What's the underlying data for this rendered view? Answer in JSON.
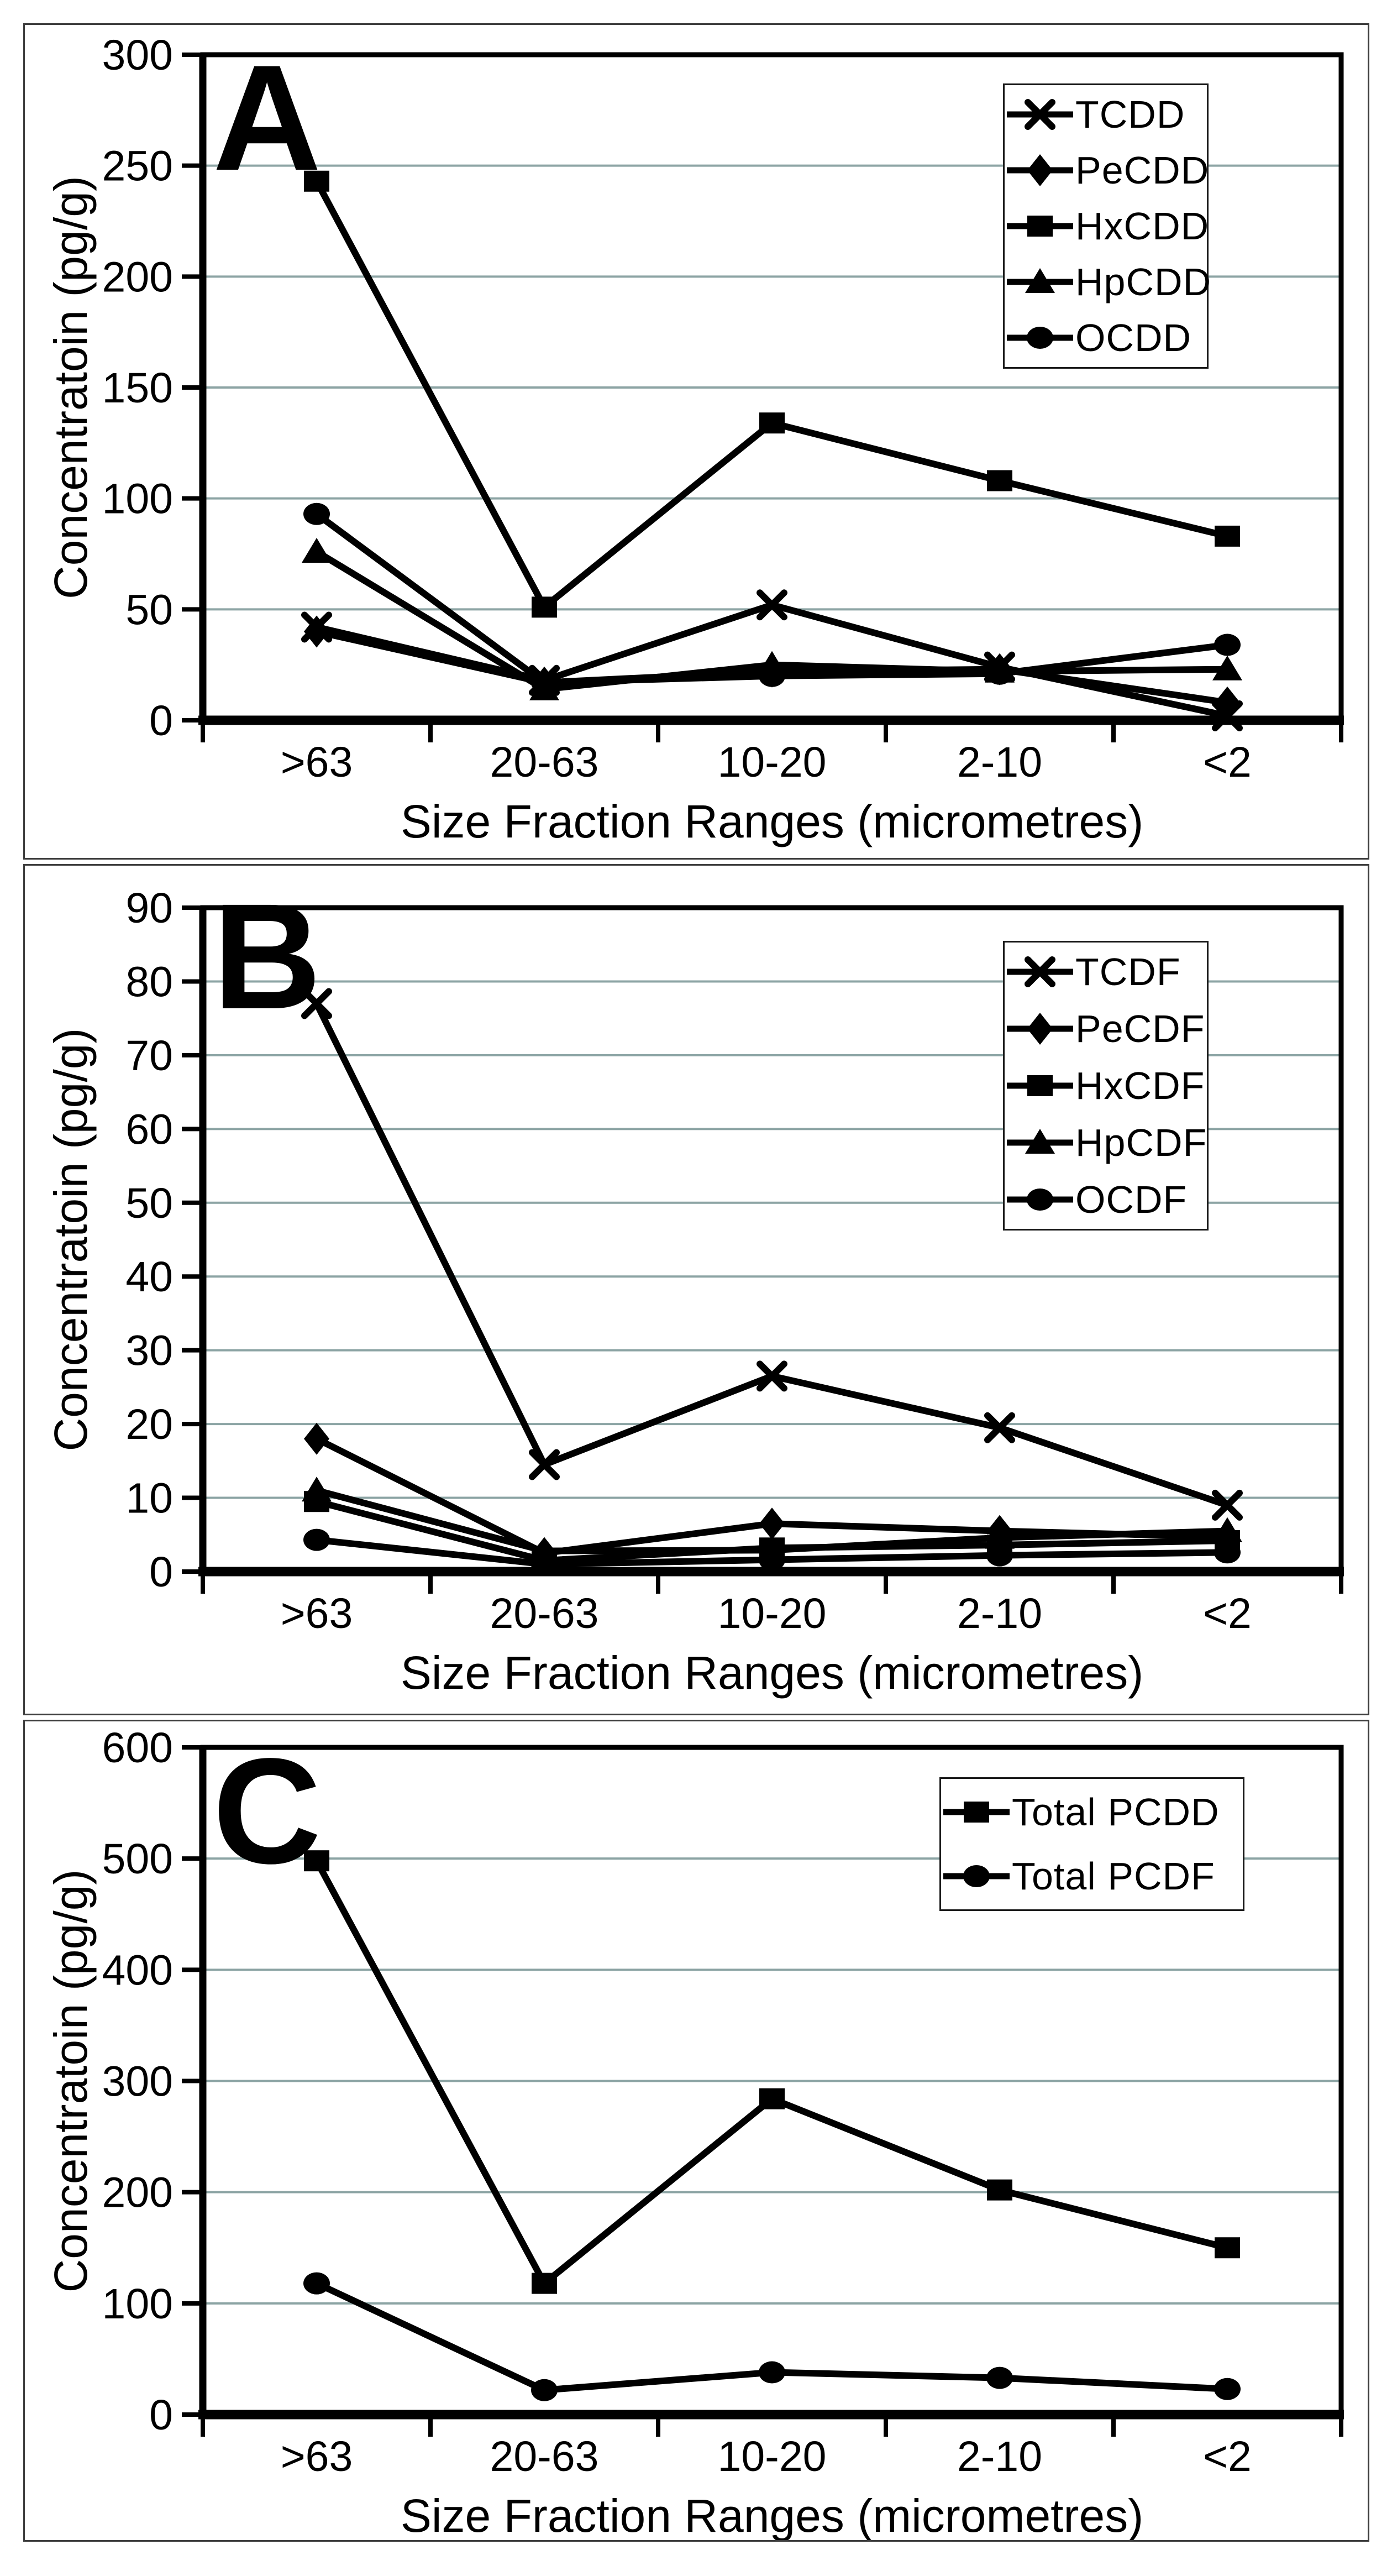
{
  "colors": {
    "background": "#ffffff",
    "series": "#000000",
    "gridline": "#8ca4a4",
    "axis": "#000000",
    "panel_frame": "#3d3d3d",
    "legend_border": "#1a1a1a",
    "text": "#000000"
  },
  "chart_data": [
    {
      "type": "line",
      "panel_label": "A",
      "ylabel": "Concentratoin (pg/g)",
      "xlabel": "Size Fraction Ranges (micrometres)",
      "categories": [
        ">63",
        "20-63",
        "10-20",
        "2-10",
        "<2"
      ],
      "ylim": [
        0,
        300
      ],
      "ytick_step": 50,
      "grid": true,
      "legend_position": "top-right",
      "series": [
        {
          "name": "TCDD",
          "marker": "x",
          "values": [
            42,
            18,
            52,
            24,
            2
          ]
        },
        {
          "name": "PeCDD",
          "marker": "diamond",
          "values": [
            40,
            17,
            22,
            23,
            8
          ]
        },
        {
          "name": "HxCDD",
          "marker": "square",
          "values": [
            243,
            51,
            134,
            108,
            83
          ]
        },
        {
          "name": "HpCDD",
          "marker": "triangle",
          "values": [
            76,
            14,
            25,
            22,
            23
          ]
        },
        {
          "name": "OCDD",
          "marker": "circle",
          "values": [
            93,
            17,
            20,
            21,
            34
          ]
        }
      ]
    },
    {
      "type": "line",
      "panel_label": "B",
      "ylabel": "Concentratoin (pg/g)",
      "xlabel": "Size Fraction Ranges (micrometres)",
      "categories": [
        ">63",
        "20-63",
        "10-20",
        "2-10",
        "<2"
      ],
      "ylim": [
        0,
        90
      ],
      "ytick_step": 10,
      "grid": true,
      "legend_position": "top-right",
      "series": [
        {
          "name": "TCDF",
          "marker": "x",
          "values": [
            77,
            14.5,
            26.5,
            19.5,
            9
          ]
        },
        {
          "name": "PeCDF",
          "marker": "diamond",
          "values": [
            18,
            2.5,
            6.5,
            5.5,
            4.7
          ]
        },
        {
          "name": "HxCDF",
          "marker": "square",
          "values": [
            9.5,
            1.5,
            3.2,
            3.6,
            4.2
          ]
        },
        {
          "name": "HpCDF",
          "marker": "triangle",
          "values": [
            11,
            2.8,
            2.9,
            4.6,
            5.5
          ]
        },
        {
          "name": "OCDF",
          "marker": "circle",
          "values": [
            4.3,
            1,
            1.6,
            2.2,
            2.6
          ]
        }
      ]
    },
    {
      "type": "line",
      "panel_label": "C",
      "ylabel": "Concentratoin (pg/g)",
      "xlabel": "Size Fraction Ranges (micrometres)",
      "categories": [
        ">63",
        "20-63",
        "10-20",
        "2-10",
        "<2"
      ],
      "ylim": [
        0,
        600
      ],
      "ytick_step": 100,
      "grid": true,
      "legend_position": "top-right",
      "series": [
        {
          "name": "Total PCDD",
          "marker": "square",
          "values": [
            498,
            118,
            284,
            202,
            150
          ]
        },
        {
          "name": "Total PCDF",
          "marker": "circle",
          "values": [
            118,
            22,
            38,
            33,
            23
          ]
        }
      ]
    }
  ]
}
